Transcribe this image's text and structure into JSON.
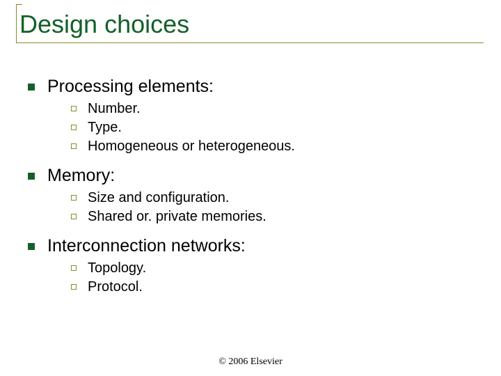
{
  "colors": {
    "title": "#14602a",
    "rule": "#8a8a2a",
    "bullet_l1": "#14602a",
    "bullet_l2_border": "#8a8a2a",
    "body_text": "#000000",
    "footer_text": "#000000",
    "background": "#ffffff"
  },
  "fontsizes": {
    "title": 36,
    "lvl1": 25,
    "lvl2": 20,
    "footer": 14
  },
  "title": "Design choices",
  "sections": [
    {
      "label": "Processing elements:",
      "items": [
        "Number.",
        "Type.",
        "Homogeneous or heterogeneous."
      ]
    },
    {
      "label": "Memory:",
      "items": [
        "Size and configuration.",
        "Shared or. private memories."
      ]
    },
    {
      "label": "Interconnection networks:",
      "items": [
        "Topology.",
        "Protocol."
      ]
    }
  ],
  "footer": "© 2006 Elsevier"
}
